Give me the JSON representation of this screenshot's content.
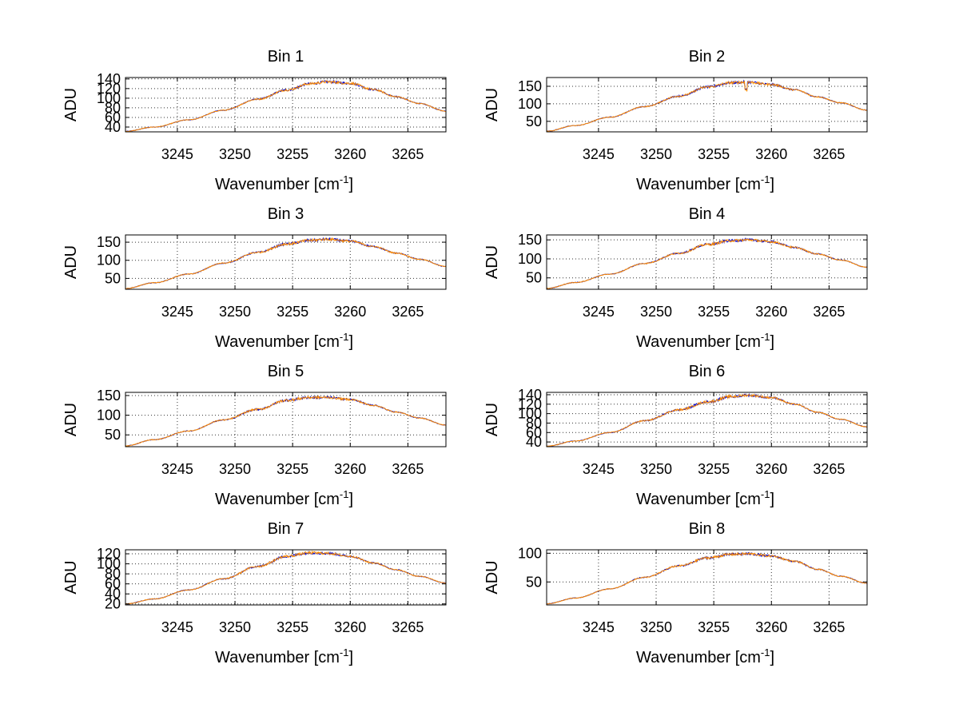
{
  "chart_data": [
    {
      "type": "line",
      "title": "Bin 1",
      "xlabel": "Wavenumber [cm",
      "xlabel_sup": "-1",
      "xlabel_end": "]",
      "ylabel": "ADU",
      "xlim": [
        3240.5,
        3268.3
      ],
      "ylim": [
        30,
        143
      ],
      "xticks": [
        3245,
        3250,
        3255,
        3260,
        3265
      ],
      "yticks": [
        40,
        60,
        80,
        100,
        120,
        140
      ],
      "grid": true,
      "peak_x": 3258,
      "series": [
        {
          "name": "blue",
          "color": "#0000c8",
          "values": [
            [
              3240.5,
              31
            ],
            [
              3243,
              40
            ],
            [
              3246,
              55
            ],
            [
              3249,
              75
            ],
            [
              3252,
              98
            ],
            [
              3254.5,
              117
            ],
            [
              3256.5,
              130
            ],
            [
              3258,
              134
            ],
            [
              3260,
              131
            ],
            [
              3262,
              118
            ],
            [
              3264,
              103
            ],
            [
              3266,
              89
            ],
            [
              3268.3,
              73
            ]
          ]
        },
        {
          "name": "orange",
          "color": "#ff8c00",
          "values": [
            [
              3240.5,
              31
            ],
            [
              3243,
              40
            ],
            [
              3246,
              55
            ],
            [
              3249,
              75
            ],
            [
              3252,
              98
            ],
            [
              3254.5,
              117
            ],
            [
              3256.5,
              130
            ],
            [
              3258,
              134
            ],
            [
              3260,
              131
            ],
            [
              3262,
              118
            ],
            [
              3264,
              103
            ],
            [
              3266,
              89
            ],
            [
              3268.3,
              73
            ]
          ]
        }
      ]
    },
    {
      "type": "line",
      "title": "Bin 2",
      "xlabel": "Wavenumber [cm",
      "xlabel_sup": "-1",
      "xlabel_end": "]",
      "ylabel": "ADU",
      "xlim": [
        3240.5,
        3268.3
      ],
      "ylim": [
        20,
        175
      ],
      "xticks": [
        3245,
        3250,
        3255,
        3260,
        3265
      ],
      "yticks": [
        50,
        100,
        150
      ],
      "grid": true,
      "peak_x": 3257,
      "series": [
        {
          "name": "blue",
          "color": "#0000c8",
          "values": [
            [
              3240.5,
              22
            ],
            [
              3243,
              38
            ],
            [
              3246,
              62
            ],
            [
              3249,
              92
            ],
            [
              3252,
              122
            ],
            [
              3254.5,
              148
            ],
            [
              3256.5,
              160
            ],
            [
              3257.8,
              162
            ],
            [
              3260,
              155
            ],
            [
              3262,
              140
            ],
            [
              3264,
              120
            ],
            [
              3266,
              103
            ],
            [
              3268.3,
              82
            ]
          ]
        },
        {
          "name": "orange",
          "color": "#ff8c00",
          "values": [
            [
              3240.5,
              22
            ],
            [
              3243,
              38
            ],
            [
              3246,
              62
            ],
            [
              3249,
              92
            ],
            [
              3252,
              122
            ],
            [
              3254.5,
              148
            ],
            [
              3256.5,
              160
            ],
            [
              3257.8,
              162
            ],
            [
              3260,
              155
            ],
            [
              3262,
              140
            ],
            [
              3264,
              120
            ],
            [
              3266,
              103
            ],
            [
              3268.3,
              82
            ]
          ]
        }
      ]
    },
    {
      "type": "line",
      "title": "Bin 3",
      "xlabel": "Wavenumber [cm",
      "xlabel_sup": "-1",
      "xlabel_end": "]",
      "ylabel": "ADU",
      "xlim": [
        3240.5,
        3268.3
      ],
      "ylim": [
        20,
        170
      ],
      "xticks": [
        3245,
        3250,
        3255,
        3260,
        3265
      ],
      "yticks": [
        50,
        100,
        150
      ],
      "grid": true,
      "peak_x": 3257,
      "series": [
        {
          "name": "blue",
          "color": "#0000c8",
          "values": [
            [
              3240.5,
              22
            ],
            [
              3243,
              38
            ],
            [
              3246,
              62
            ],
            [
              3249,
              92
            ],
            [
              3252,
              122
            ],
            [
              3254.5,
              145
            ],
            [
              3256.5,
              155
            ],
            [
              3258,
              158
            ],
            [
              3260,
              153
            ],
            [
              3262,
              138
            ],
            [
              3264,
              120
            ],
            [
              3266,
              103
            ],
            [
              3268.3,
              83
            ]
          ]
        },
        {
          "name": "orange",
          "color": "#ff8c00",
          "values": [
            [
              3240.5,
              22
            ],
            [
              3243,
              38
            ],
            [
              3246,
              62
            ],
            [
              3249,
              92
            ],
            [
              3252,
              122
            ],
            [
              3254.5,
              145
            ],
            [
              3256.5,
              155
            ],
            [
              3258,
              158
            ],
            [
              3260,
              153
            ],
            [
              3262,
              138
            ],
            [
              3264,
              120
            ],
            [
              3266,
              103
            ],
            [
              3268.3,
              83
            ]
          ]
        }
      ]
    },
    {
      "type": "line",
      "title": "Bin 4",
      "xlabel": "Wavenumber [cm",
      "xlabel_sup": "-1",
      "xlabel_end": "]",
      "ylabel": "ADU",
      "xlim": [
        3240.5,
        3268.3
      ],
      "ylim": [
        20,
        163
      ],
      "xticks": [
        3245,
        3250,
        3255,
        3260,
        3265
      ],
      "yticks": [
        50,
        100,
        150
      ],
      "grid": true,
      "peak_x": 3257,
      "series": [
        {
          "name": "blue",
          "color": "#0000c8",
          "values": [
            [
              3240.5,
              22
            ],
            [
              3243,
              38
            ],
            [
              3246,
              60
            ],
            [
              3249,
              88
            ],
            [
              3252,
              115
            ],
            [
              3254.5,
              138
            ],
            [
              3256.5,
              148
            ],
            [
              3258,
              150
            ],
            [
              3260,
              145
            ],
            [
              3262,
              130
            ],
            [
              3264,
              113
            ],
            [
              3266,
              97
            ],
            [
              3268.3,
              78
            ]
          ]
        },
        {
          "name": "orange",
          "color": "#ff8c00",
          "values": [
            [
              3240.5,
              22
            ],
            [
              3243,
              38
            ],
            [
              3246,
              60
            ],
            [
              3249,
              88
            ],
            [
              3252,
              115
            ],
            [
              3254.5,
              138
            ],
            [
              3256.5,
              148
            ],
            [
              3258,
              150
            ],
            [
              3260,
              145
            ],
            [
              3262,
              130
            ],
            [
              3264,
              113
            ],
            [
              3266,
              97
            ],
            [
              3268.3,
              78
            ]
          ]
        }
      ]
    },
    {
      "type": "line",
      "title": "Bin 5",
      "xlabel": "Wavenumber [cm",
      "xlabel_sup": "-1",
      "xlabel_end": "]",
      "ylabel": "ADU",
      "xlim": [
        3240.5,
        3268.3
      ],
      "ylim": [
        20,
        158
      ],
      "xticks": [
        3245,
        3250,
        3255,
        3260,
        3265
      ],
      "yticks": [
        50,
        100,
        150
      ],
      "grid": true,
      "peak_x": 3256,
      "series": [
        {
          "name": "blue",
          "color": "#0000c8",
          "values": [
            [
              3240.5,
              22
            ],
            [
              3243,
              38
            ],
            [
              3246,
              60
            ],
            [
              3249,
              88
            ],
            [
              3252,
              115
            ],
            [
              3254.5,
              138
            ],
            [
              3256.5,
              145
            ],
            [
              3258,
              145
            ],
            [
              3260,
              140
            ],
            [
              3262,
              125
            ],
            [
              3264,
              108
            ],
            [
              3266,
              93
            ],
            [
              3268.3,
              75
            ]
          ]
        },
        {
          "name": "orange",
          "color": "#ff8c00",
          "values": [
            [
              3240.5,
              22
            ],
            [
              3243,
              38
            ],
            [
              3246,
              60
            ],
            [
              3249,
              88
            ],
            [
              3252,
              115
            ],
            [
              3254.5,
              138
            ],
            [
              3256.5,
              145
            ],
            [
              3258,
              145
            ],
            [
              3260,
              140
            ],
            [
              3262,
              125
            ],
            [
              3264,
              108
            ],
            [
              3266,
              93
            ],
            [
              3268.3,
              75
            ]
          ]
        }
      ]
    },
    {
      "type": "line",
      "title": "Bin 6",
      "xlabel": "Wavenumber [cm",
      "xlabel_sup": "-1",
      "xlabel_end": "]",
      "ylabel": "ADU",
      "xlim": [
        3240.5,
        3268.3
      ],
      "ylim": [
        30,
        145
      ],
      "xticks": [
        3245,
        3250,
        3255,
        3260,
        3265
      ],
      "yticks": [
        40,
        60,
        80,
        100,
        120,
        140
      ],
      "grid": true,
      "peak_x": 3256,
      "series": [
        {
          "name": "blue",
          "color": "#0000c8",
          "values": [
            [
              3240.5,
              31
            ],
            [
              3243,
              42
            ],
            [
              3246,
              60
            ],
            [
              3249,
              85
            ],
            [
              3252,
              108
            ],
            [
              3254.5,
              125
            ],
            [
              3256.5,
              136
            ],
            [
              3258,
              139
            ],
            [
              3260,
              134
            ],
            [
              3262,
              120
            ],
            [
              3264,
              103
            ],
            [
              3266,
              88
            ],
            [
              3268.3,
              72
            ]
          ]
        },
        {
          "name": "orange",
          "color": "#ff8c00",
          "values": [
            [
              3240.5,
              31
            ],
            [
              3243,
              42
            ],
            [
              3246,
              60
            ],
            [
              3249,
              85
            ],
            [
              3252,
              108
            ],
            [
              3254.5,
              125
            ],
            [
              3256.5,
              136
            ],
            [
              3258,
              139
            ],
            [
              3260,
              134
            ],
            [
              3262,
              120
            ],
            [
              3264,
              103
            ],
            [
              3266,
              88
            ],
            [
              3268.3,
              72
            ]
          ]
        }
      ]
    },
    {
      "type": "line",
      "title": "Bin 7",
      "xlabel": "Wavenumber [cm",
      "xlabel_sup": "-1",
      "xlabel_end": "]",
      "ylabel": "ADU",
      "xlim": [
        3240.5,
        3268.3
      ],
      "ylim": [
        18,
        128
      ],
      "xticks": [
        3245,
        3250,
        3255,
        3260,
        3265
      ],
      "yticks": [
        20,
        40,
        60,
        80,
        100,
        120
      ],
      "grid": true,
      "peak_x": 3256,
      "series": [
        {
          "name": "blue",
          "color": "#0000c8",
          "values": [
            [
              3240.5,
              20
            ],
            [
              3243,
              30
            ],
            [
              3246,
              48
            ],
            [
              3249,
              70
            ],
            [
              3252,
              95
            ],
            [
              3254.5,
              115
            ],
            [
              3256.5,
              122
            ],
            [
              3258,
              121
            ],
            [
              3260,
              115
            ],
            [
              3262,
              102
            ],
            [
              3264,
              88
            ],
            [
              3266,
              75
            ],
            [
              3268.3,
              62
            ]
          ]
        },
        {
          "name": "orange",
          "color": "#ff8c00",
          "values": [
            [
              3240.5,
              20
            ],
            [
              3243,
              30
            ],
            [
              3246,
              48
            ],
            [
              3249,
              70
            ],
            [
              3252,
              95
            ],
            [
              3254.5,
              115
            ],
            [
              3256.5,
              122
            ],
            [
              3258,
              121
            ],
            [
              3260,
              115
            ],
            [
              3262,
              102
            ],
            [
              3264,
              88
            ],
            [
              3266,
              75
            ],
            [
              3268.3,
              62
            ]
          ]
        }
      ]
    },
    {
      "type": "line",
      "title": "Bin 8",
      "xlabel": "Wavenumber [cm",
      "xlabel_sup": "-1",
      "xlabel_end": "]",
      "ylabel": "ADU",
      "xlim": [
        3240.5,
        3268.3
      ],
      "ylim": [
        10,
        106
      ],
      "xticks": [
        3245,
        3250,
        3255,
        3260,
        3265
      ],
      "yticks": [
        50,
        100
      ],
      "grid": true,
      "peak_x": 3257,
      "series": [
        {
          "name": "blue",
          "color": "#0000c8",
          "values": [
            [
              3240.5,
              12
            ],
            [
              3243,
              22
            ],
            [
              3246,
              38
            ],
            [
              3249,
              58
            ],
            [
              3252,
              78
            ],
            [
              3254.5,
              92
            ],
            [
              3256.5,
              98
            ],
            [
              3258,
              99
            ],
            [
              3260,
              95
            ],
            [
              3262,
              86
            ],
            [
              3264,
              72
            ],
            [
              3266,
              60
            ],
            [
              3268.3,
              48
            ]
          ]
        },
        {
          "name": "orange",
          "color": "#ff8c00",
          "values": [
            [
              3240.5,
              12
            ],
            [
              3243,
              22
            ],
            [
              3246,
              38
            ],
            [
              3249,
              58
            ],
            [
              3252,
              78
            ],
            [
              3254.5,
              92
            ],
            [
              3256.5,
              98
            ],
            [
              3258,
              99
            ],
            [
              3260,
              95
            ],
            [
              3262,
              86
            ],
            [
              3264,
              72
            ],
            [
              3266,
              60
            ],
            [
              3268.3,
              48
            ]
          ]
        }
      ]
    }
  ]
}
